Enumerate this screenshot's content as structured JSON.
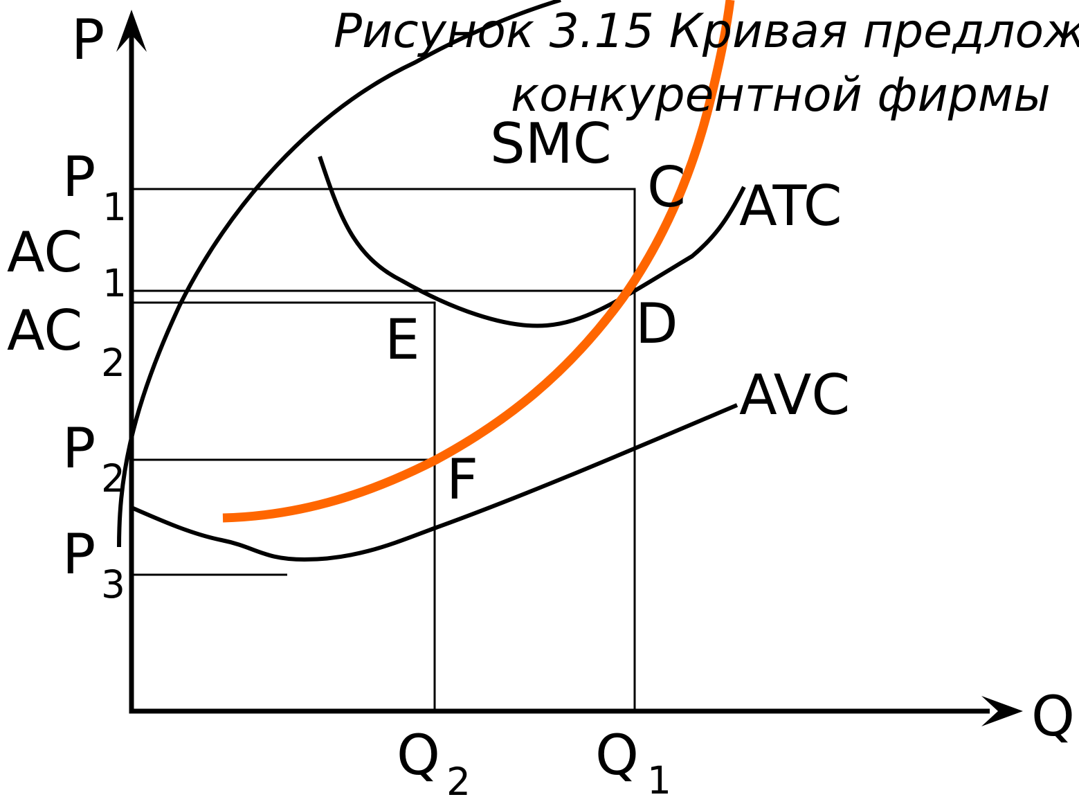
{
  "title": [
    "Рисунок 3.15 Кривая предложе",
    "конкурентной фирмы"
  ],
  "axes": {
    "y": "P",
    "x": "Q"
  },
  "y_labels": [
    {
      "main": "P",
      "sub": "1"
    },
    {
      "main": "AC",
      "sub": "1"
    },
    {
      "main": "AC",
      "sub": "2"
    },
    {
      "main": "P",
      "sub": "2"
    },
    {
      "main": "P",
      "sub": "3"
    }
  ],
  "x_labels": [
    {
      "main": "Q",
      "sub": "2"
    },
    {
      "main": "Q",
      "sub": "1"
    }
  ],
  "curves": [
    "SMC",
    "ATC",
    "AVC"
  ],
  "points": [
    "C",
    "D",
    "E",
    "F"
  ]
}
